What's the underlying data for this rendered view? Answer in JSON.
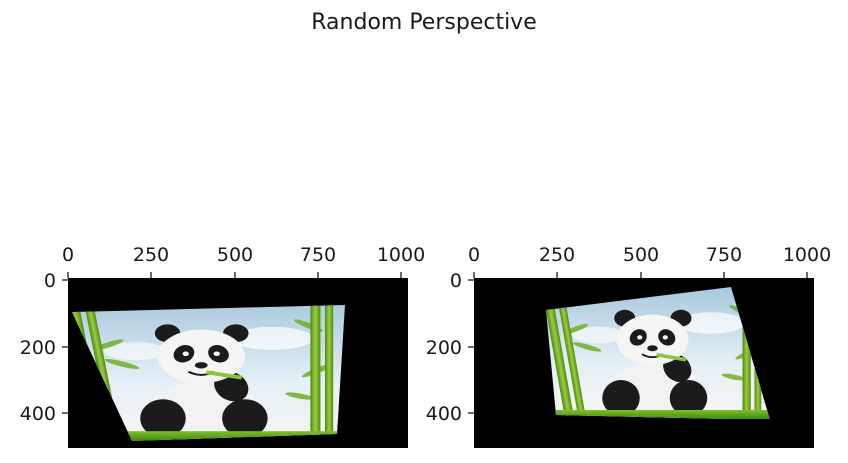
{
  "figure": {
    "title": "Random Perspective"
  },
  "subplots": [
    {
      "id": "left",
      "x_ticks": [
        "0",
        "250",
        "500",
        "750",
        "1000"
      ],
      "y_ticks": [
        "0",
        "200",
        "400"
      ],
      "image": "perspective-warped panda eating bamboo among bamboo stalks on black background"
    },
    {
      "id": "right",
      "x_ticks": [
        "0",
        "250",
        "500",
        "750",
        "1000"
      ],
      "y_ticks": [
        "0",
        "200",
        "400"
      ],
      "image": "perspective-warped panda eating bamboo among bamboo stalks on black background"
    }
  ],
  "colors": {
    "background": "#ffffff",
    "image_fill": "#000000",
    "axis": "#1a1a1a"
  }
}
